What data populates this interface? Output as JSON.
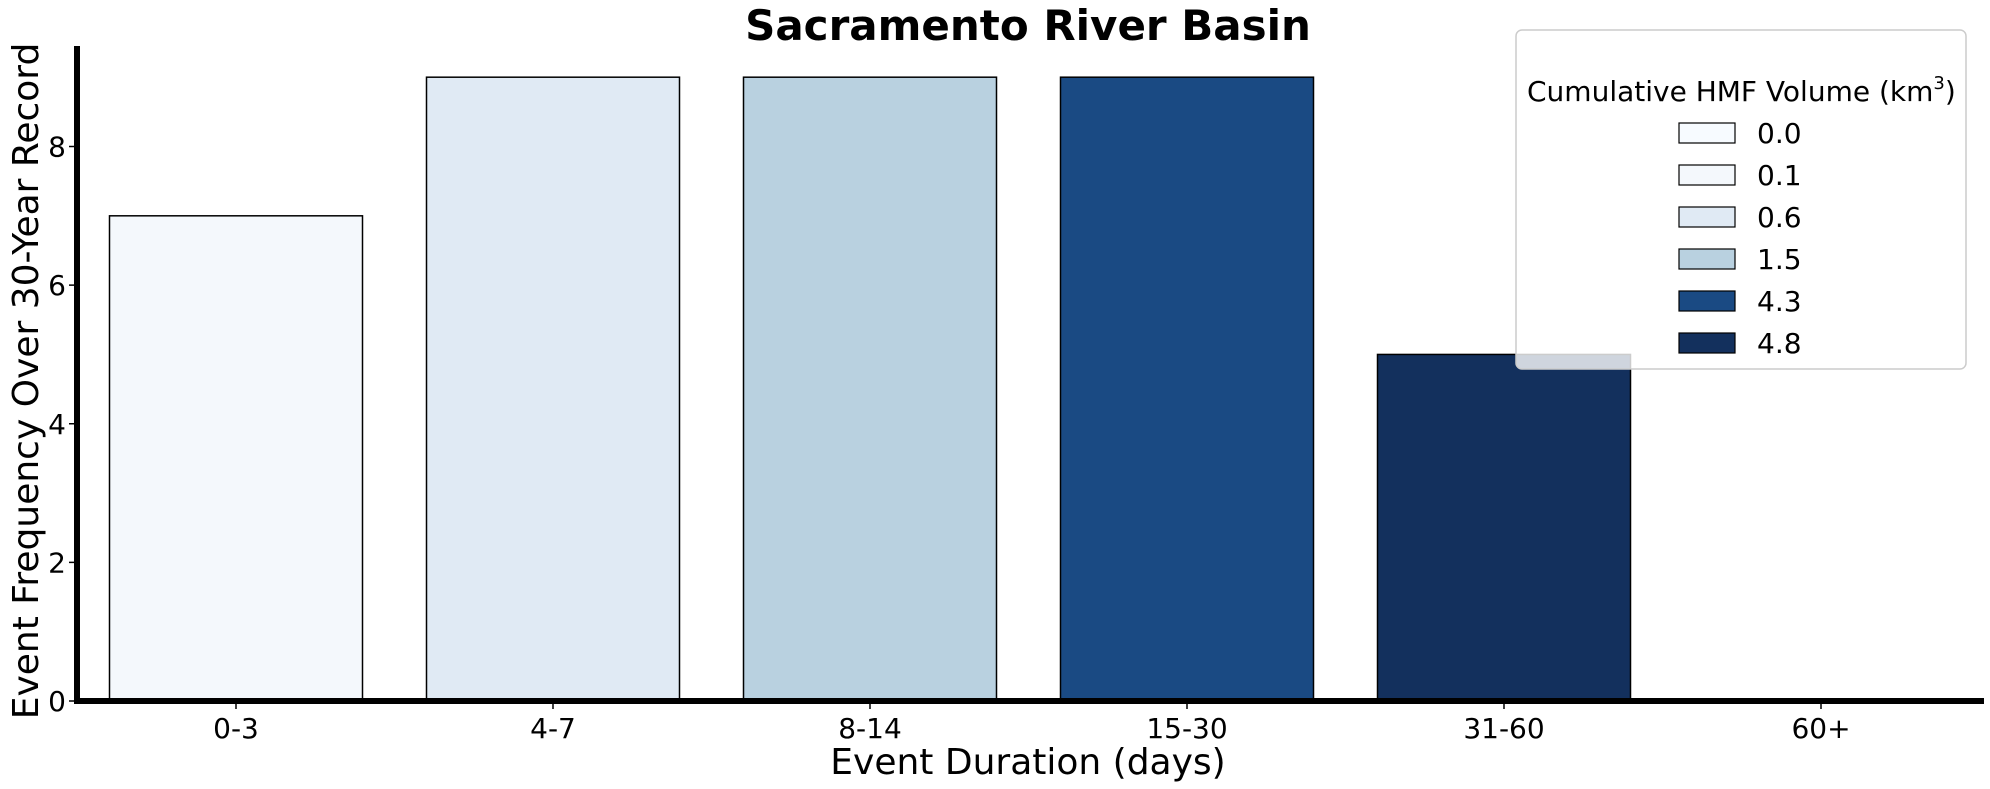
{
  "chart_data": {
    "type": "bar",
    "title": "Sacramento River Basin",
    "xlabel": "Event Duration (days)",
    "ylabel": "Event Frequency Over 30-Year Record",
    "categories": [
      "0-3",
      "4-7",
      "8-14",
      "15-30",
      "31-60",
      "60+"
    ],
    "values": [
      7,
      9,
      9,
      9,
      5,
      0
    ],
    "bar_colors": [
      "#f4f8fc",
      "#e0eaf4",
      "#b9d1e0",
      "#1a4a83",
      "#13305d",
      "#08306b"
    ],
    "ylim": [
      0,
      9.45
    ],
    "yticks": [
      0,
      2,
      4,
      6,
      8
    ],
    "grid": false,
    "legend": {
      "title_main": "Cumulative HMF Volume (km",
      "title_sup": "3",
      "title_end": ")",
      "placement": "top-right",
      "entries": [
        {
          "label": "0.0",
          "color": "#f7fbff"
        },
        {
          "label": "0.1",
          "color": "#f4f8fc"
        },
        {
          "label": "0.6",
          "color": "#e0eaf4"
        },
        {
          "label": "1.5",
          "color": "#b9d1e0"
        },
        {
          "label": "4.3",
          "color": "#1a4a83"
        },
        {
          "label": "4.8",
          "color": "#13305d"
        }
      ]
    }
  }
}
